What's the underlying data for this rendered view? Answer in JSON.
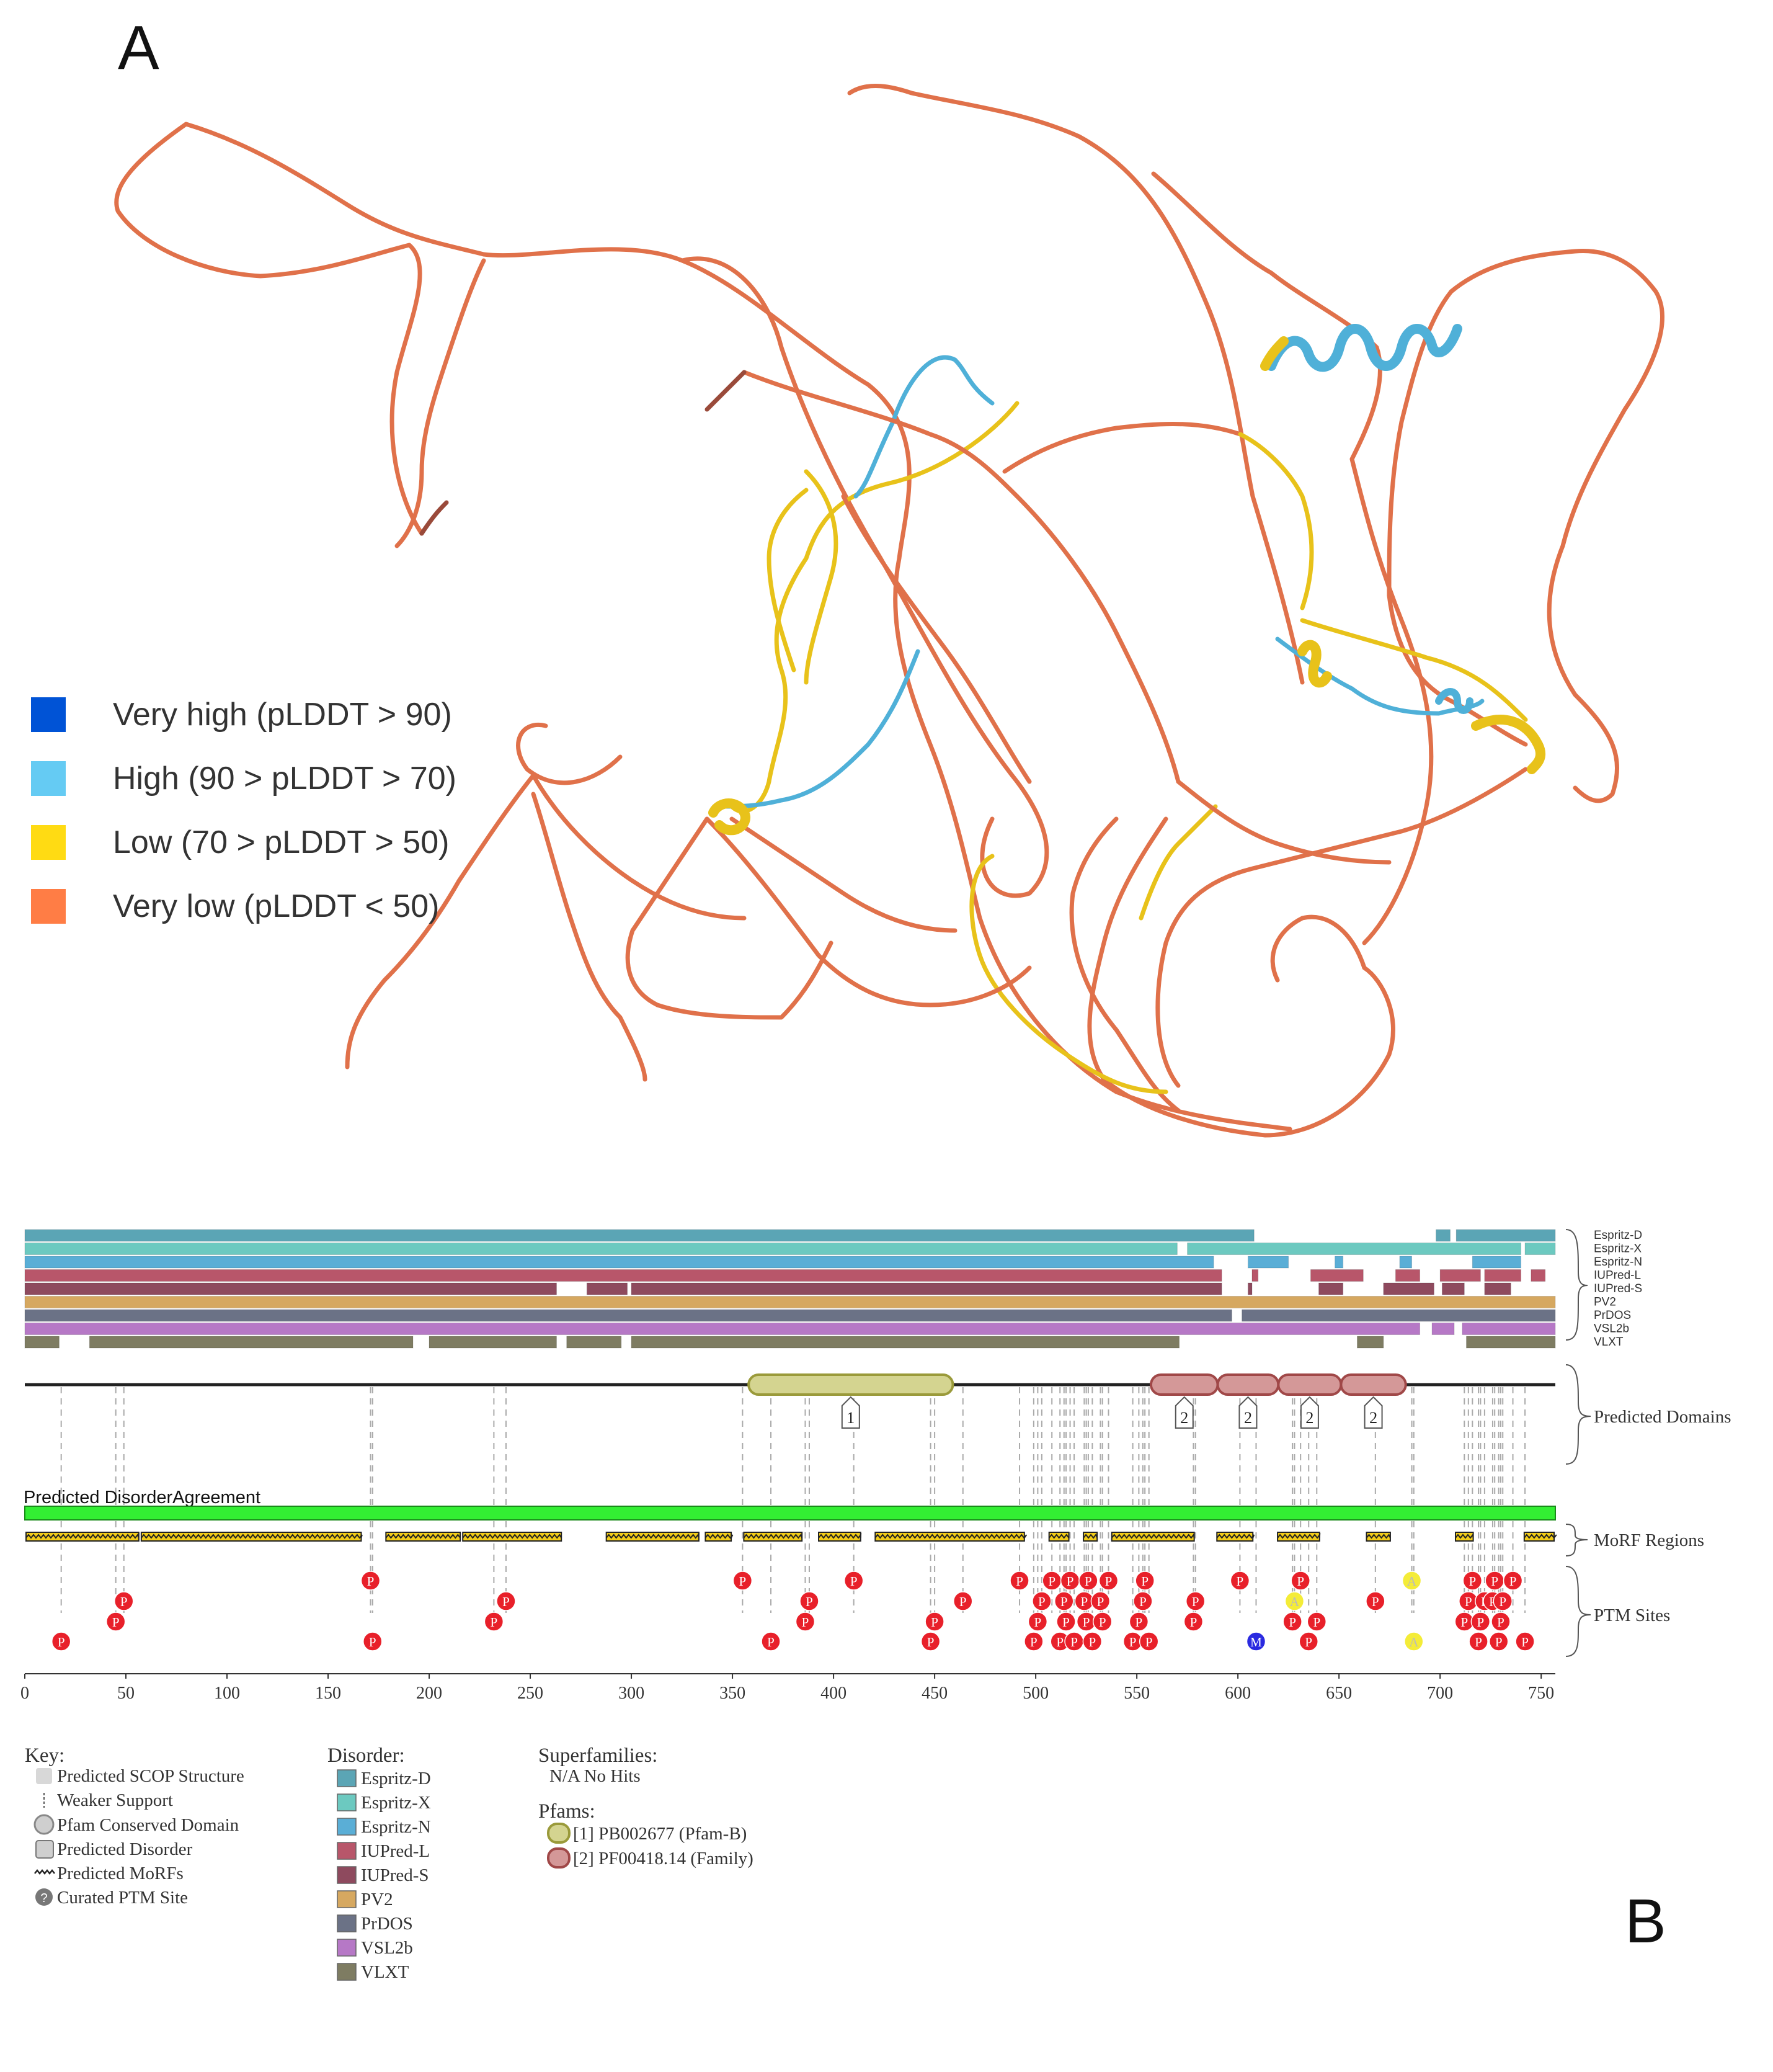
{
  "panel_labels": {
    "a": "A",
    "b": "B"
  },
  "plddt_legend": [
    {
      "label": "Very high (pLDDT > 90)",
      "color": "#0053d6"
    },
    {
      "label": "High (90 > pLDDT > 70)",
      "color": "#65cbf3"
    },
    {
      "label": "Low (70 > pLDDT > 50)",
      "color": "#ffdb13"
    },
    {
      "label": "Very low (pLDDT < 50)",
      "color": "#ff7d45"
    }
  ],
  "structure_colors": {
    "very_low": "#e0714a",
    "very_low_dark": "#9a4a3a",
    "low": "#e8c21a",
    "high": "#4fb0d8"
  },
  "d2p2": {
    "track_labels": [
      "Espritz-D",
      "Espritz-X",
      "Espritz-N",
      "IUPred-L",
      "IUPred-S",
      "PV2",
      "PrDOS",
      "VSL2b",
      "VLXT"
    ],
    "track_colors": [
      "#5ba5b5",
      "#6cc9c0",
      "#5aaed6",
      "#b8566a",
      "#8e4a5e",
      "#d6a860",
      "#6b7286",
      "#b678c6",
      "#7e7c62"
    ],
    "sequence_length": 757,
    "tracks": [
      [
        [
          0,
          608
        ],
        [
          698,
          705
        ],
        [
          708,
          757
        ]
      ],
      [
        [
          0,
          570
        ],
        [
          575,
          740
        ],
        [
          742,
          757
        ]
      ],
      [
        [
          0,
          588
        ],
        [
          605,
          625
        ],
        [
          648,
          652
        ],
        [
          680,
          686
        ],
        [
          716,
          740
        ]
      ],
      [
        [
          0,
          592
        ],
        [
          607,
          610
        ],
        [
          636,
          662
        ],
        [
          678,
          690
        ],
        [
          700,
          720
        ],
        [
          722,
          740
        ],
        [
          745,
          752
        ]
      ],
      [
        [
          0,
          263
        ],
        [
          278,
          298
        ],
        [
          300,
          592
        ],
        [
          605,
          607
        ],
        [
          640,
          652
        ],
        [
          672,
          697
        ],
        [
          701,
          712
        ],
        [
          722,
          735
        ]
      ],
      [
        [
          0,
          757
        ]
      ],
      [
        [
          0,
          597
        ],
        [
          602,
          757
        ]
      ],
      [
        [
          0,
          690
        ],
        [
          696,
          707
        ],
        [
          711,
          757
        ]
      ],
      [
        [
          0,
          17
        ],
        [
          32,
          192
        ],
        [
          200,
          263
        ],
        [
          268,
          295
        ],
        [
          300,
          571
        ],
        [
          659,
          672
        ],
        [
          713,
          757
        ]
      ]
    ],
    "predicted_domains_label": "Predicted Domains",
    "domains": [
      {
        "start": 358,
        "end": 459,
        "tag": "1",
        "fill": "#d4d490",
        "stroke": "#9a9a3a"
      },
      {
        "start": 557,
        "end": 590,
        "tag": "2",
        "fill": "#d49898",
        "stroke": "#a04848"
      },
      {
        "start": 590,
        "end": 620,
        "tag": "2",
        "fill": "#d49898",
        "stroke": "#a04848"
      },
      {
        "start": 620,
        "end": 651,
        "tag": "2",
        "fill": "#d49898",
        "stroke": "#a04848"
      },
      {
        "start": 651,
        "end": 683,
        "tag": "2",
        "fill": "#d49898",
        "stroke": "#a04848"
      }
    ],
    "disorder_agreement_label": "Predicted DisorderAgreement",
    "morf_label": "MoRF Regions",
    "morf_regions": [
      [
        0,
        57
      ],
      [
        57,
        167
      ],
      [
        178,
        216
      ],
      [
        216,
        266
      ],
      [
        287,
        334
      ],
      [
        336,
        350
      ],
      [
        355,
        385
      ],
      [
        392,
        414
      ],
      [
        420,
        495
      ],
      [
        506,
        517
      ],
      [
        523,
        531
      ],
      [
        537,
        579
      ],
      [
        589,
        608
      ],
      [
        619,
        641
      ],
      [
        663,
        676
      ],
      [
        707,
        717
      ],
      [
        741,
        757
      ]
    ],
    "ptm_label": "PTM Sites",
    "ptm_sites": [
      {
        "pos": 18,
        "row": 4,
        "t": "P"
      },
      {
        "pos": 45,
        "row": 3,
        "t": "P"
      },
      {
        "pos": 49,
        "row": 2,
        "t": "P"
      },
      {
        "pos": 171,
        "row": 1,
        "t": "P"
      },
      {
        "pos": 172,
        "row": 4,
        "t": "P"
      },
      {
        "pos": 232,
        "row": 3,
        "t": "P"
      },
      {
        "pos": 238,
        "row": 2,
        "t": "P"
      },
      {
        "pos": 355,
        "row": 1,
        "t": "P"
      },
      {
        "pos": 369,
        "row": 4,
        "t": "P"
      },
      {
        "pos": 386,
        "row": 3,
        "t": "P"
      },
      {
        "pos": 388,
        "row": 2,
        "t": "P"
      },
      {
        "pos": 410,
        "row": 1,
        "t": "P"
      },
      {
        "pos": 448,
        "row": 4,
        "t": "P"
      },
      {
        "pos": 450,
        "row": 3,
        "t": "P"
      },
      {
        "pos": 464,
        "row": 2,
        "t": "P"
      },
      {
        "pos": 492,
        "row": 1,
        "t": "P"
      },
      {
        "pos": 499,
        "row": 4,
        "t": "P"
      },
      {
        "pos": 501,
        "row": 3,
        "t": "P"
      },
      {
        "pos": 503,
        "row": 2,
        "t": "P"
      },
      {
        "pos": 508,
        "row": 1,
        "t": "P"
      },
      {
        "pos": 512,
        "row": 4,
        "t": "P"
      },
      {
        "pos": 514,
        "row": 2,
        "t": "P"
      },
      {
        "pos": 515,
        "row": 3,
        "t": "P"
      },
      {
        "pos": 517,
        "row": 1,
        "t": "P"
      },
      {
        "pos": 519,
        "row": 4,
        "t": "P"
      },
      {
        "pos": 524,
        "row": 2,
        "t": "P"
      },
      {
        "pos": 525,
        "row": 3,
        "t": "P"
      },
      {
        "pos": 526,
        "row": 1,
        "t": "P"
      },
      {
        "pos": 528,
        "row": 4,
        "t": "P"
      },
      {
        "pos": 532,
        "row": 2,
        "t": "P"
      },
      {
        "pos": 533,
        "row": 3,
        "t": "P"
      },
      {
        "pos": 536,
        "row": 1,
        "t": "P"
      },
      {
        "pos": 548,
        "row": 4,
        "t": "P"
      },
      {
        "pos": 551,
        "row": 3,
        "t": "P"
      },
      {
        "pos": 553,
        "row": 2,
        "t": "P"
      },
      {
        "pos": 554,
        "row": 1,
        "t": "P"
      },
      {
        "pos": 556,
        "row": 4,
        "t": "P"
      },
      {
        "pos": 578,
        "row": 3,
        "t": "P"
      },
      {
        "pos": 579,
        "row": 2,
        "t": "P"
      },
      {
        "pos": 601,
        "row": 1,
        "t": "P"
      },
      {
        "pos": 609,
        "row": 4,
        "t": "M"
      },
      {
        "pos": 627,
        "row": 3,
        "t": "P"
      },
      {
        "pos": 628,
        "row": 2,
        "t": "A"
      },
      {
        "pos": 631,
        "row": 1,
        "t": "P"
      },
      {
        "pos": 635,
        "row": 4,
        "t": "P"
      },
      {
        "pos": 639,
        "row": 3,
        "t": "P"
      },
      {
        "pos": 668,
        "row": 2,
        "t": "P"
      },
      {
        "pos": 686,
        "row": 1,
        "t": "A"
      },
      {
        "pos": 687,
        "row": 4,
        "t": "A"
      },
      {
        "pos": 712,
        "row": 3,
        "t": "P"
      },
      {
        "pos": 714,
        "row": 2,
        "t": "P"
      },
      {
        "pos": 716,
        "row": 1,
        "t": "P"
      },
      {
        "pos": 719,
        "row": 4,
        "t": "P"
      },
      {
        "pos": 720,
        "row": 3,
        "t": "P"
      },
      {
        "pos": 722,
        "row": 2,
        "t": "P"
      },
      {
        "pos": 726,
        "row": 2,
        "t": "P"
      },
      {
        "pos": 727,
        "row": 1,
        "t": "P"
      },
      {
        "pos": 729,
        "row": 4,
        "t": "P"
      },
      {
        "pos": 730,
        "row": 3,
        "t": "P"
      },
      {
        "pos": 731,
        "row": 2,
        "t": "P"
      },
      {
        "pos": 736,
        "row": 1,
        "t": "P"
      },
      {
        "pos": 742,
        "row": 4,
        "t": "P"
      }
    ],
    "x_ticks": [
      0,
      50,
      100,
      150,
      200,
      250,
      300,
      350,
      400,
      450,
      500,
      550,
      600,
      650,
      700,
      750
    ],
    "key": {
      "title": "Key:",
      "items": [
        "Predicted SCOP Structure",
        "Weaker Support",
        "Pfam Conserved Domain",
        "Predicted Disorder",
        "Predicted MoRFs",
        "Curated PTM Site"
      ]
    },
    "disorder_key": {
      "title": "Disorder:"
    },
    "superfamilies": {
      "title": "Superfamilies:",
      "value": "N/A No Hits"
    },
    "pfams": {
      "title": "Pfams:",
      "items": [
        {
          "label": "[1] PB002677 (Pfam-B)",
          "fill": "#d4d490",
          "stroke": "#9a9a3a"
        },
        {
          "label": "[2] PF00418.14 (Family)",
          "fill": "#d49898",
          "stroke": "#a04848"
        }
      ]
    }
  }
}
